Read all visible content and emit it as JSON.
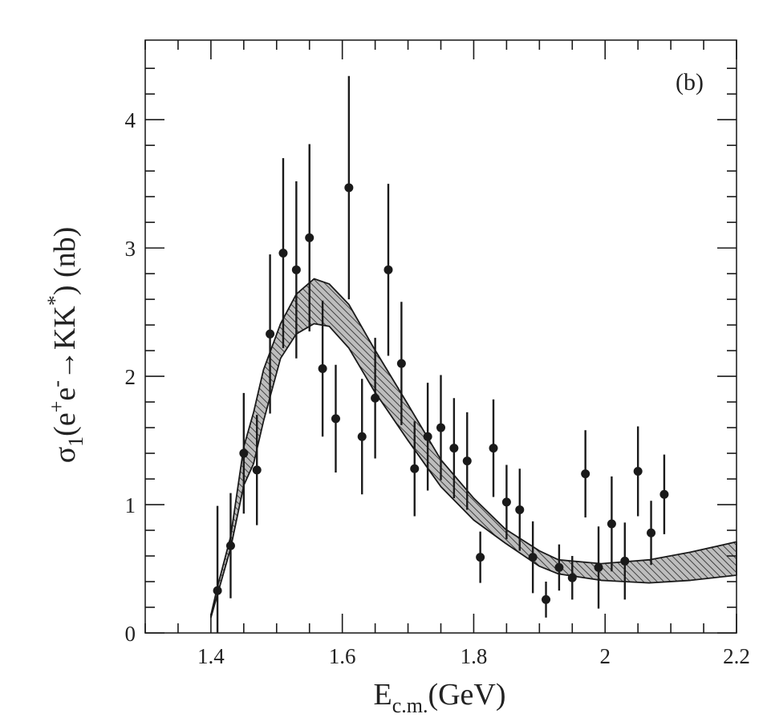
{
  "chart_data": {
    "type": "scatter",
    "panel_label": "(b)",
    "xlabel_parts": {
      "main": "E",
      "sub": "c.m.",
      "unit": "(GeV)"
    },
    "ylabel_parts": {
      "sigma": "σ",
      "sub1": "1",
      "open": "(e",
      "sup_plus": "+",
      "e2": "e",
      "sup_minus": "-",
      "arrow": "→KK",
      "sup_star": "*",
      "close": ") (nb)"
    },
    "xlim": [
      1.3,
      2.2
    ],
    "ylim": [
      0,
      4.62
    ],
    "xticks": [
      1.4,
      1.6,
      1.8,
      2.0,
      2.2
    ],
    "xtick_labels": [
      "1.4",
      "1.6",
      "1.8",
      "2",
      "2.2"
    ],
    "yticks": [
      0,
      1,
      2,
      3,
      4
    ],
    "ytick_labels": [
      "0",
      "1",
      "2",
      "3",
      "4"
    ],
    "grid": false,
    "points": {
      "x": [
        1.41,
        1.43,
        1.45,
        1.47,
        1.49,
        1.51,
        1.53,
        1.55,
        1.57,
        1.59,
        1.61,
        1.63,
        1.65,
        1.67,
        1.69,
        1.71,
        1.73,
        1.75,
        1.77,
        1.79,
        1.81,
        1.83,
        1.85,
        1.87,
        1.89,
        1.91,
        1.93,
        1.95,
        1.97,
        1.99,
        2.01,
        2.03,
        2.05,
        2.07,
        2.09
      ],
      "y": [
        0.33,
        0.68,
        1.4,
        1.27,
        2.33,
        2.96,
        2.83,
        3.08,
        2.06,
        1.67,
        3.47,
        1.53,
        1.83,
        2.83,
        2.1,
        1.28,
        1.53,
        1.6,
        1.44,
        1.34,
        0.59,
        1.44,
        1.02,
        0.96,
        0.59,
        0.26,
        0.51,
        0.43,
        1.24,
        0.51,
        0.85,
        0.56,
        1.26,
        0.78,
        1.08
      ],
      "err": [
        0.66,
        0.41,
        0.47,
        0.43,
        0.62,
        0.74,
        0.69,
        0.73,
        0.53,
        0.42,
        0.87,
        0.45,
        0.47,
        0.67,
        0.48,
        0.37,
        0.42,
        0.41,
        0.39,
        0.38,
        0.2,
        0.38,
        0.29,
        0.32,
        0.28,
        0.14,
        0.18,
        0.17,
        0.34,
        0.32,
        0.37,
        0.3,
        0.35,
        0.25,
        0.31
      ]
    },
    "band": {
      "x": [
        1.4,
        1.41,
        1.43,
        1.45,
        1.465,
        1.48,
        1.506,
        1.53,
        1.557,
        1.58,
        1.61,
        1.648,
        1.7,
        1.75,
        1.8,
        1.848,
        1.9,
        1.929,
        1.994,
        2.067,
        2.13,
        2.2
      ],
      "upper": [
        0.14,
        0.36,
        0.75,
        1.45,
        1.72,
        2.05,
        2.41,
        2.64,
        2.76,
        2.72,
        2.56,
        2.22,
        1.78,
        1.35,
        1.05,
        0.81,
        0.64,
        0.57,
        0.54,
        0.57,
        0.63,
        0.71
      ],
      "lower": [
        0.12,
        0.3,
        0.66,
        1.15,
        1.32,
        1.65,
        2.14,
        2.33,
        2.41,
        2.39,
        2.22,
        1.89,
        1.5,
        1.14,
        0.88,
        0.7,
        0.52,
        0.46,
        0.41,
        0.39,
        0.41,
        0.45
      ],
      "fill": "#bdbdbd"
    },
    "colors": {
      "ink": "#1a1a1a"
    }
  }
}
